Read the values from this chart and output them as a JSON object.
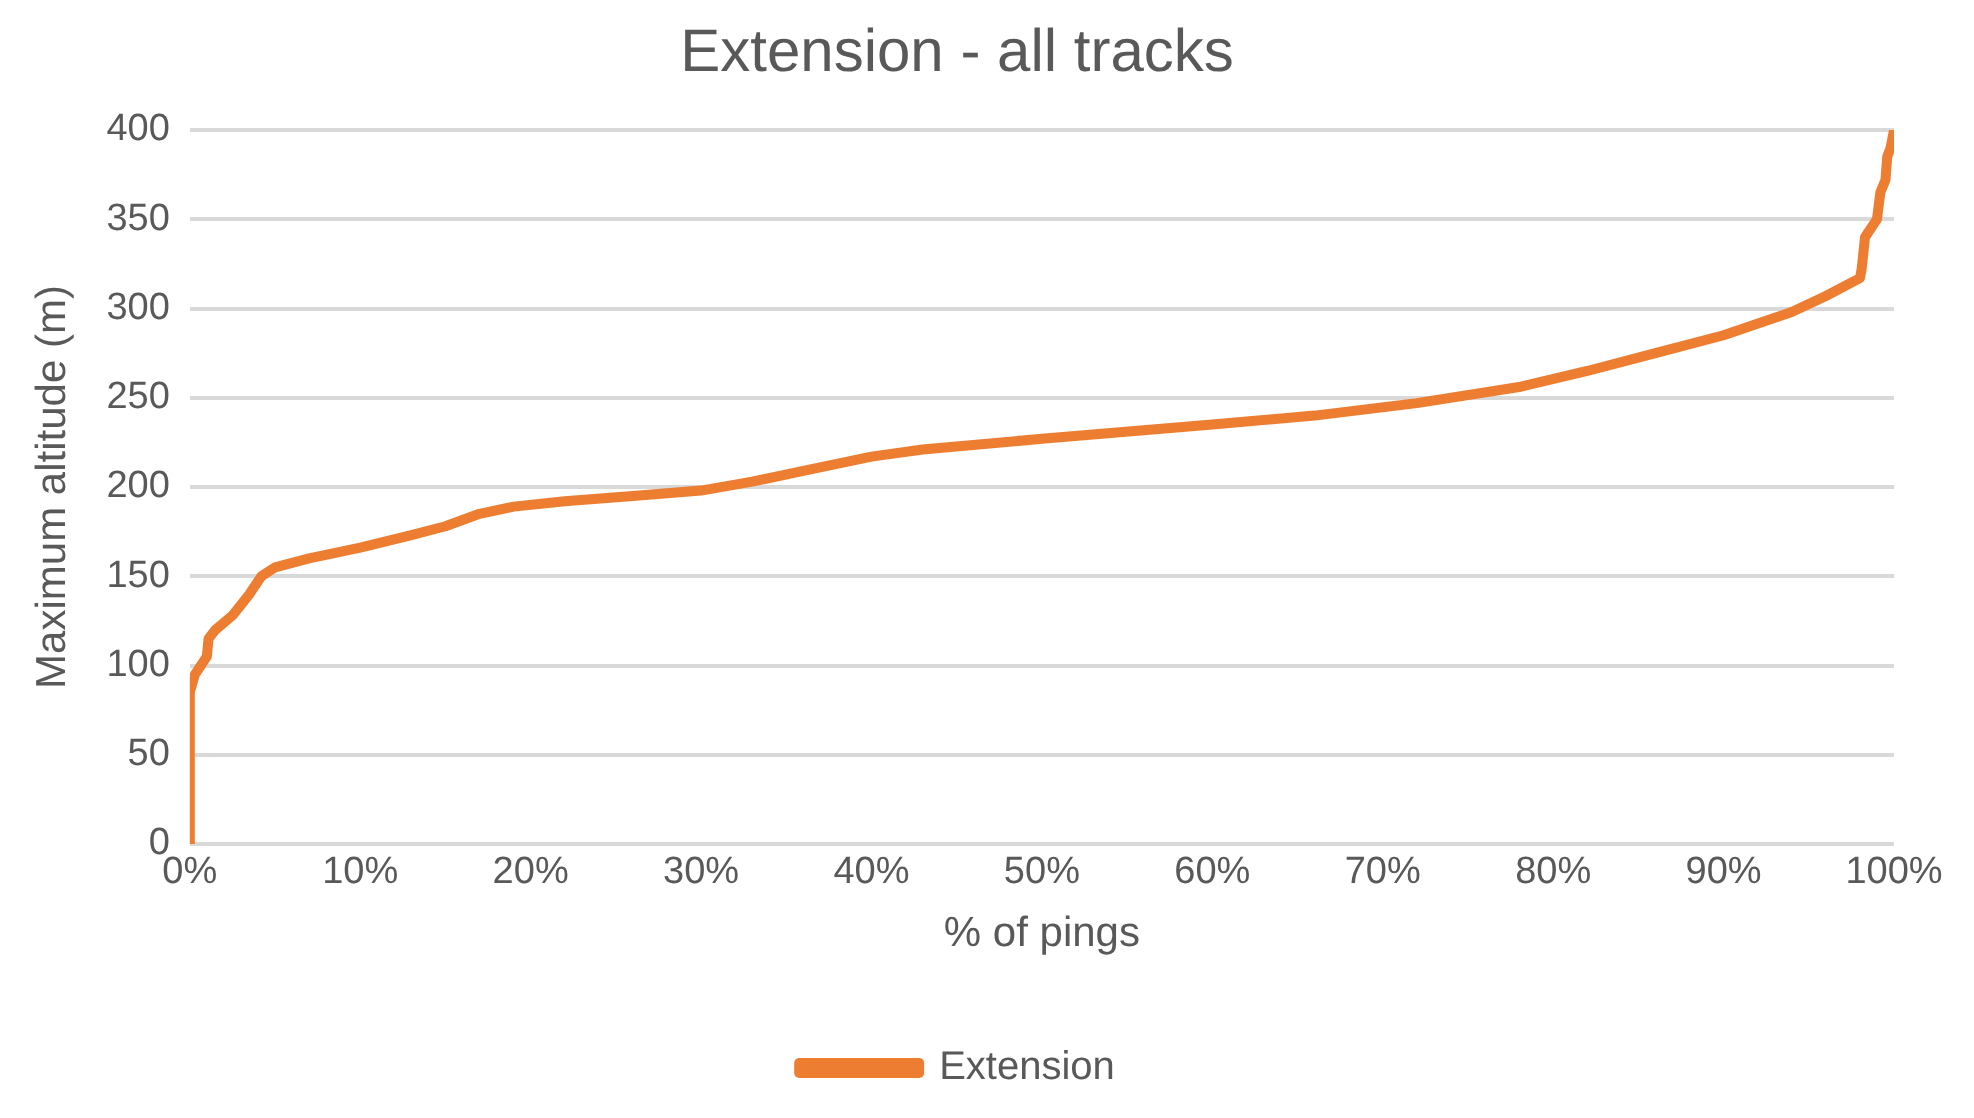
{
  "chart_data": {
    "type": "line",
    "title": "Extension - all tracks",
    "xlabel": "% of pings",
    "ylabel": "Maximum altitude (m)",
    "xlim": [
      0,
      100
    ],
    "xticks": [
      {
        "value": 0,
        "label": "0%"
      },
      {
        "value": 10,
        "label": "10%"
      },
      {
        "value": 20,
        "label": "20%"
      },
      {
        "value": 30,
        "label": "30%"
      },
      {
        "value": 40,
        "label": "40%"
      },
      {
        "value": 50,
        "label": "50%"
      },
      {
        "value": 60,
        "label": "60%"
      },
      {
        "value": 70,
        "label": "70%"
      },
      {
        "value": 80,
        "label": "80%"
      },
      {
        "value": 90,
        "label": "90%"
      },
      {
        "value": 100,
        "label": "100%"
      }
    ],
    "ylim": [
      0,
      400
    ],
    "yticks": [
      0,
      50,
      100,
      150,
      200,
      250,
      300,
      350,
      400
    ],
    "grid": "y",
    "legend": "bottom",
    "marker": "none",
    "line_style": "solid",
    "series": [
      {
        "name": "Extension",
        "color": "#ed7d31",
        "x": [
          0,
          0,
          0.3,
          1,
          1.1,
          1.5,
          2.5,
          3.5,
          4.2,
          5,
          7,
          10,
          13,
          15,
          17,
          19,
          22,
          26,
          30,
          33,
          36,
          40,
          43,
          50,
          60,
          66,
          72,
          78,
          82,
          86,
          90,
          94,
          96,
          98,
          98.1,
          98.3,
          99,
          99.2,
          99.5,
          99.6,
          99.8,
          100
        ],
        "values": [
          0,
          85,
          95,
          105,
          115,
          120,
          128,
          140,
          150,
          155,
          160,
          166,
          173,
          178,
          185,
          189,
          192,
          195,
          198,
          203,
          209,
          217,
          221,
          227,
          235,
          240,
          247,
          256,
          265,
          275,
          285,
          298,
          307,
          317,
          322,
          340,
          350,
          365,
          372,
          385,
          390,
          400
        ]
      }
    ]
  }
}
